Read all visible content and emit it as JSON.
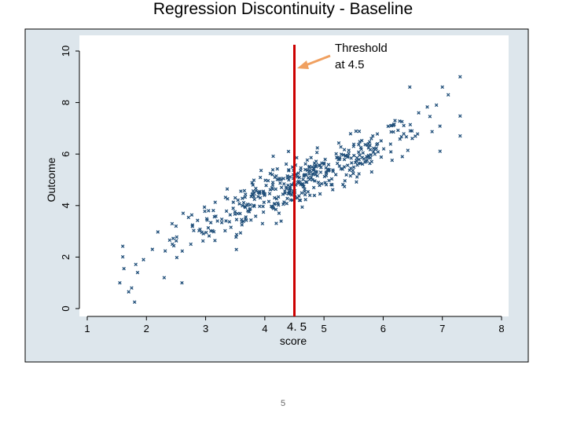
{
  "slide": {
    "title": "Regression Discontinuity - Baseline",
    "page_number": "5"
  },
  "colors": {
    "frame_bg": "#dde6ec",
    "frame_border": "#000000",
    "plot_bg": "#ffffff",
    "points": "#1f4e79",
    "threshold_line": "#cc0000",
    "arrow": "#f0a060"
  },
  "chart_data": {
    "type": "scatter",
    "title": "",
    "xlabel": "score",
    "ylabel": "Outcome",
    "xlim": [
      1,
      8
    ],
    "ylim": [
      0,
      10
    ],
    "x_ticks": [
      "1",
      "2",
      "3",
      "4",
      "5",
      "6",
      "7",
      "8"
    ],
    "y_ticks": [
      "0",
      "2",
      "4",
      "6",
      "8",
      "10"
    ],
    "threshold": {
      "x": 4.5,
      "label_line1": "Threshold",
      "label_line2": "at 4.5"
    },
    "threshold_axis_label": "4. 5",
    "grid": false,
    "marker": "x",
    "approx_n_points": 900,
    "trend": {
      "intercept": 0.3,
      "slope": 1.0,
      "noise_sd": 0.45
    },
    "sample_points": [
      [
        1.55,
        1.0
      ],
      [
        1.62,
        1.55
      ],
      [
        1.7,
        0.65
      ],
      [
        1.75,
        0.8
      ],
      [
        1.8,
        0.25
      ],
      [
        1.85,
        1.4
      ],
      [
        1.95,
        1.9
      ],
      [
        2.1,
        2.3
      ],
      [
        2.3,
        1.2
      ],
      [
        2.5,
        3.2
      ],
      [
        2.6,
        1.0
      ],
      [
        2.62,
        3.7
      ],
      [
        2.75,
        2.5
      ],
      [
        3.05,
        3.8
      ],
      [
        3.2,
        3.4
      ],
      [
        3.5,
        4.3
      ],
      [
        3.8,
        4.8
      ],
      [
        4.4,
        6.1
      ],
      [
        4.6,
        4.2
      ],
      [
        4.8,
        5.5
      ],
      [
        5.2,
        5.2
      ],
      [
        5.5,
        6.3
      ],
      [
        5.8,
        6.6
      ],
      [
        6.2,
        7.3
      ],
      [
        6.45,
        8.6
      ],
      [
        6.6,
        7.6
      ],
      [
        6.9,
        7.9
      ],
      [
        7.0,
        8.6
      ],
      [
        7.1,
        8.3
      ],
      [
        7.3,
        9.0
      ]
    ]
  }
}
